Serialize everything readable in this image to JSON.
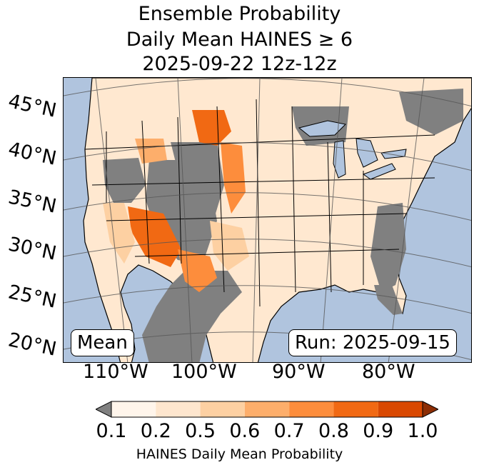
{
  "title": {
    "line1": "Ensemble Probability",
    "line2": "Daily Mean HAINES ≥ 6",
    "line3": "2025-09-22 12z-12z"
  },
  "map": {
    "region": "Continental United States",
    "lat_labels": [
      "45°N",
      "40°N",
      "35°N",
      "30°N",
      "25°N",
      "20°N"
    ],
    "lon_labels": [
      "110°W",
      "100°W",
      "90°W",
      "80°W"
    ],
    "colors": {
      "ocean": "#b0c4de",
      "masked": "#808080",
      "borders": "#000000",
      "gridlines": "#555555"
    },
    "left_box": "Mean",
    "right_box": "Run: 2025-09-15"
  },
  "colorbar": {
    "ticks": [
      "0.1",
      "0.2",
      "0.5",
      "0.6",
      "0.7",
      "0.8",
      "0.9",
      "1.0"
    ],
    "colors": [
      "#fff5eb",
      "#fee6ce",
      "#fdd0a2",
      "#fdae6b",
      "#fd8d3c",
      "#f16913",
      "#d94801"
    ],
    "under_color": "#808080",
    "over_color": "#8c2d04",
    "label": "HAINES Daily Mean Probability"
  }
}
